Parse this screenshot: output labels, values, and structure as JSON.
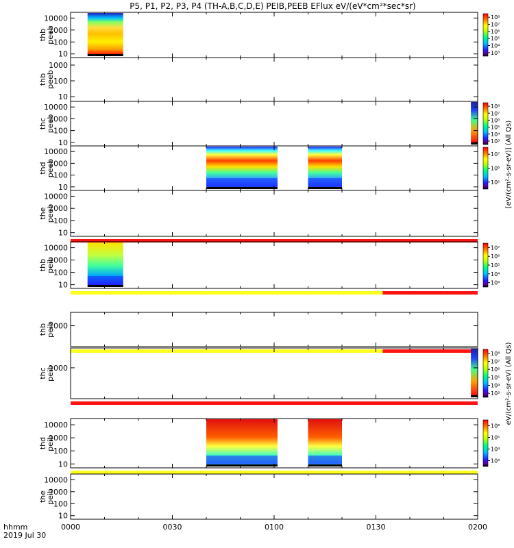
{
  "chart_data": {
    "type": "heatmap",
    "title": "P5, P1, P2, P3, P4 (TH-A,B,C,D,E) PEIB,PEEB EFlux eV/(eV*cm²*sec*sr)",
    "x_axis": {
      "ticks": [
        "0000",
        "0030",
        "0100",
        "0130",
        "0200"
      ],
      "range_minutes": [
        0,
        120
      ],
      "label_left": "hhmm",
      "date_label": "2019 Jul 30"
    },
    "colorbar_titles": {
      "peeb_a": "[eV/(cm²-s-sr-eV)] (All Qs)",
      "peeb_b": "eV/(cm²-s-sr-eV) (All Qs)",
      "peib_a": "eV/(cm²-s-sr-eV) (All Qs)",
      "peib_b": "[eV/(cm²-s-sr-eV)] (All Qs)"
    },
    "panels": [
      {
        "label": [
          "thb",
          "peeb"
        ],
        "y_ticks": [
          "10",
          "100",
          "1000",
          "10000"
        ],
        "y_range": [
          5,
          30000
        ],
        "data_minutes": [
          [
            5,
            15.5
          ]
        ],
        "colorbar_ticks": [
          "10³",
          "10⁴",
          "10⁵",
          "10⁶",
          "10⁷",
          "10⁸"
        ],
        "has_colorbar": true,
        "has_bottom_bar": false
      },
      {
        "label": [
          "thb",
          "peeb"
        ],
        "y_ticks": [
          "10",
          "100",
          "1000"
        ],
        "y_range": [
          5,
          3000
        ],
        "data_minutes": [],
        "has_colorbar": false,
        "has_bottom_bar": false
      },
      {
        "label": [
          "thc",
          "peeb"
        ],
        "y_ticks": [
          "10",
          "100",
          "1000",
          "10000"
        ],
        "y_range": [
          5,
          30000
        ],
        "data_minutes": [
          [
            118,
            120
          ]
        ],
        "colorbar_ticks": [
          "10³",
          "10⁴",
          "10⁵",
          "10⁶",
          "10⁷",
          "10⁸"
        ],
        "has_colorbar": true,
        "has_bottom_bar": false
      },
      {
        "label": [
          "thd",
          "peeb"
        ],
        "y_ticks": [
          "10",
          "100",
          "1000",
          "10000"
        ],
        "y_range": [
          5,
          30000
        ],
        "data_minutes": [
          [
            40,
            61
          ],
          [
            70,
            80
          ]
        ],
        "colorbar_ticks": [
          "10⁵",
          "10⁶",
          "10⁷"
        ],
        "has_colorbar": true,
        "has_bottom_bar": false
      },
      {
        "label": [
          "the",
          "peeb"
        ],
        "y_ticks": [
          "10",
          "100",
          "1000",
          "10000"
        ],
        "y_range": [
          5,
          30000
        ],
        "data_minutes": [],
        "has_colorbar": false,
        "has_bottom_bar": true,
        "bar_segments": [
          {
            "start": 0,
            "end": 120,
            "color": "#ff1414"
          }
        ]
      },
      {
        "label": [
          "thb",
          "peib"
        ],
        "y_ticks": [
          "10",
          "100",
          "1000",
          "10000"
        ],
        "y_range": [
          5,
          30000
        ],
        "data_minutes": [
          [
            5,
            15.5
          ]
        ],
        "colorbar_ticks": [
          "10³",
          "10⁴",
          "10⁵",
          "10⁶",
          "10⁷"
        ],
        "has_colorbar": true,
        "has_bottom_bar": true,
        "bar_segments": [
          {
            "start": 0,
            "end": 92,
            "color": "#ffff1e"
          },
          {
            "start": 92,
            "end": 120,
            "color": "#ff1414"
          }
        ]
      },
      {
        "label": [
          "thb",
          "peib"
        ],
        "y_ticks": [
          "1000"
        ],
        "y_range": [
          5,
          30000
        ],
        "data_minutes": [],
        "has_colorbar": false,
        "has_bottom_bar": true,
        "bar_segments": [
          {
            "start": 0,
            "end": 92,
            "color": "#ffff1e"
          },
          {
            "start": 92,
            "end": 120,
            "color": "#ff1414"
          }
        ]
      },
      {
        "label": [
          "thc",
          "peib"
        ],
        "y_ticks": [
          "1000"
        ],
        "y_range": [
          5,
          30000
        ],
        "data_minutes": [
          [
            118,
            120
          ]
        ],
        "colorbar_ticks": [
          "10³",
          "10⁴",
          "10⁵",
          "10⁶",
          "10⁷",
          "10⁸"
        ],
        "has_colorbar": true,
        "has_bottom_bar": true,
        "bar_segments": [
          {
            "start": 0,
            "end": 120,
            "color": "#ff1414"
          }
        ]
      },
      {
        "label": [
          "thd",
          "peib"
        ],
        "y_ticks": [
          "10",
          "100",
          "1000",
          "10000"
        ],
        "y_range": [
          5,
          30000
        ],
        "data_minutes": [
          [
            40,
            61
          ],
          [
            70,
            80
          ]
        ],
        "colorbar_ticks": [
          "10³",
          "10⁴",
          "10⁵",
          "10⁶"
        ],
        "has_colorbar": true,
        "has_bottom_bar": true,
        "bar_segments": [
          {
            "start": 0,
            "end": 120,
            "color": "#ffff1e"
          }
        ]
      },
      {
        "label": [
          "the",
          "peib"
        ],
        "y_ticks": [
          "10",
          "100",
          "1000",
          "10000"
        ],
        "y_range": [
          5,
          30000
        ],
        "data_minutes": [],
        "has_colorbar": false,
        "has_bottom_bar": false
      }
    ]
  }
}
